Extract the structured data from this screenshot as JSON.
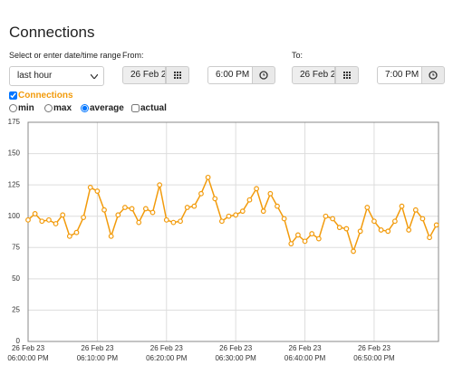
{
  "form": {
    "title": "Connections",
    "range_label": "Select or enter date/time range",
    "range_value": "last hour",
    "from_label": "From:",
    "from_date": "26 Feb 2",
    "from_time": "6:00 PM",
    "to_label": "To:",
    "to_date": "26 Feb 2",
    "to_time": "7:00 PM",
    "modes": [
      "min",
      "max",
      "average",
      "actual"
    ]
  },
  "chart_data": {
    "type": "line",
    "x": [
      0,
      1,
      2,
      3,
      4,
      5,
      6,
      7,
      8,
      9,
      10,
      11,
      12,
      13,
      14,
      15,
      16,
      17,
      18,
      19,
      20,
      21,
      22,
      23,
      24,
      25,
      26,
      27,
      28,
      29,
      30,
      31,
      32,
      33,
      34,
      35,
      36,
      37,
      38,
      39,
      40,
      41,
      42,
      43,
      44,
      45,
      46,
      47,
      48,
      49,
      50,
      51,
      52,
      53,
      54,
      55,
      56,
      57,
      58,
      59
    ],
    "series": [
      {
        "name": "Connections",
        "color": "#f29b0c",
        "values": [
          97,
          102,
          96,
          97,
          94,
          101,
          84,
          87,
          99,
          123,
          120,
          105,
          84,
          101,
          107,
          106,
          95,
          106,
          103,
          125,
          97,
          95,
          96,
          107,
          108,
          118,
          131,
          114,
          96,
          100,
          101,
          104,
          113,
          122,
          104,
          118,
          108,
          98,
          78,
          85,
          80,
          86,
          82,
          100,
          98,
          91,
          90,
          72,
          88,
          107,
          96,
          89,
          88,
          96,
          108,
          89,
          105,
          98,
          83,
          93
        ]
      }
    ],
    "xlim": [
      0,
      59.3
    ],
    "ylim": [
      0,
      175
    ],
    "yticks": [
      0,
      25,
      50,
      75,
      100,
      125,
      150,
      175
    ],
    "xticks": [
      {
        "value": 0,
        "label": "06:00:00 PM",
        "date": "26 Feb 23"
      },
      {
        "value": 10,
        "label": "06:10:00 PM",
        "date": "26 Feb 23"
      },
      {
        "value": 20,
        "label": "06:20:00 PM",
        "date": "26 Feb 23"
      },
      {
        "value": 30,
        "label": "06:30:00 PM",
        "date": "26 Feb 23"
      },
      {
        "value": 40,
        "label": "06:40:00 PM",
        "date": "26 Feb 23"
      },
      {
        "value": 50,
        "label": "06:50:00 PM",
        "date": "26 Feb 23"
      }
    ],
    "grid": true
  }
}
